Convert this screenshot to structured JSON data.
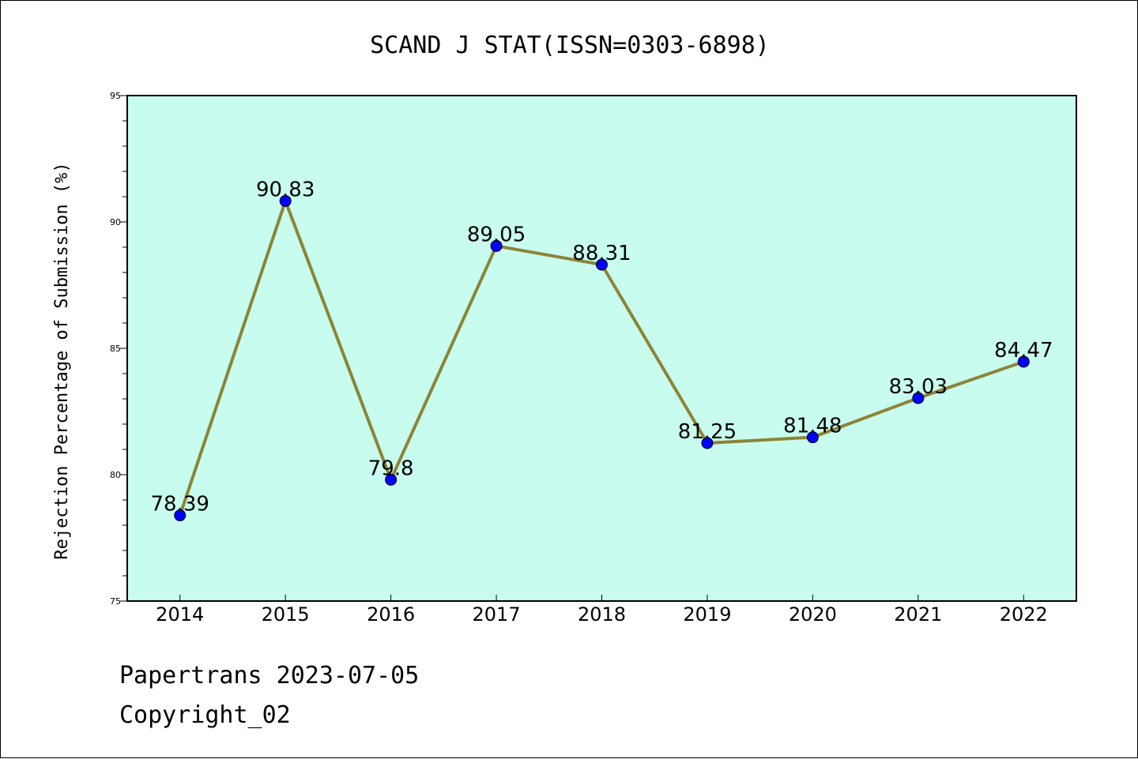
{
  "chart_data": {
    "type": "line",
    "title": "SCAND J STAT(ISSN=0303-6898)",
    "ylabel": "Rejection Percentage of Submission (%)",
    "xlabel": "",
    "categories": [
      "2014",
      "2015",
      "2016",
      "2017",
      "2018",
      "2019",
      "2020",
      "2021",
      "2022"
    ],
    "values": [
      78.39,
      90.83,
      79.8,
      89.05,
      88.31,
      81.25,
      81.48,
      83.03,
      84.47
    ],
    "data_labels": [
      "78.39",
      "90.83",
      "79.8",
      "89.05",
      "88.31",
      "81.25",
      "81.48",
      "83.03",
      "84.47"
    ],
    "ylim": [
      75,
      95
    ],
    "yticks": [
      "75",
      "80",
      "85",
      "90",
      "95"
    ],
    "grid": false,
    "legend": "none",
    "colors": {
      "plot_background": "#c8fcee",
      "line": "#8c8438",
      "marker": "#0000ff"
    }
  },
  "footer": {
    "line1": "Papertrans 2023-07-05",
    "line2": "Copyright_02"
  }
}
